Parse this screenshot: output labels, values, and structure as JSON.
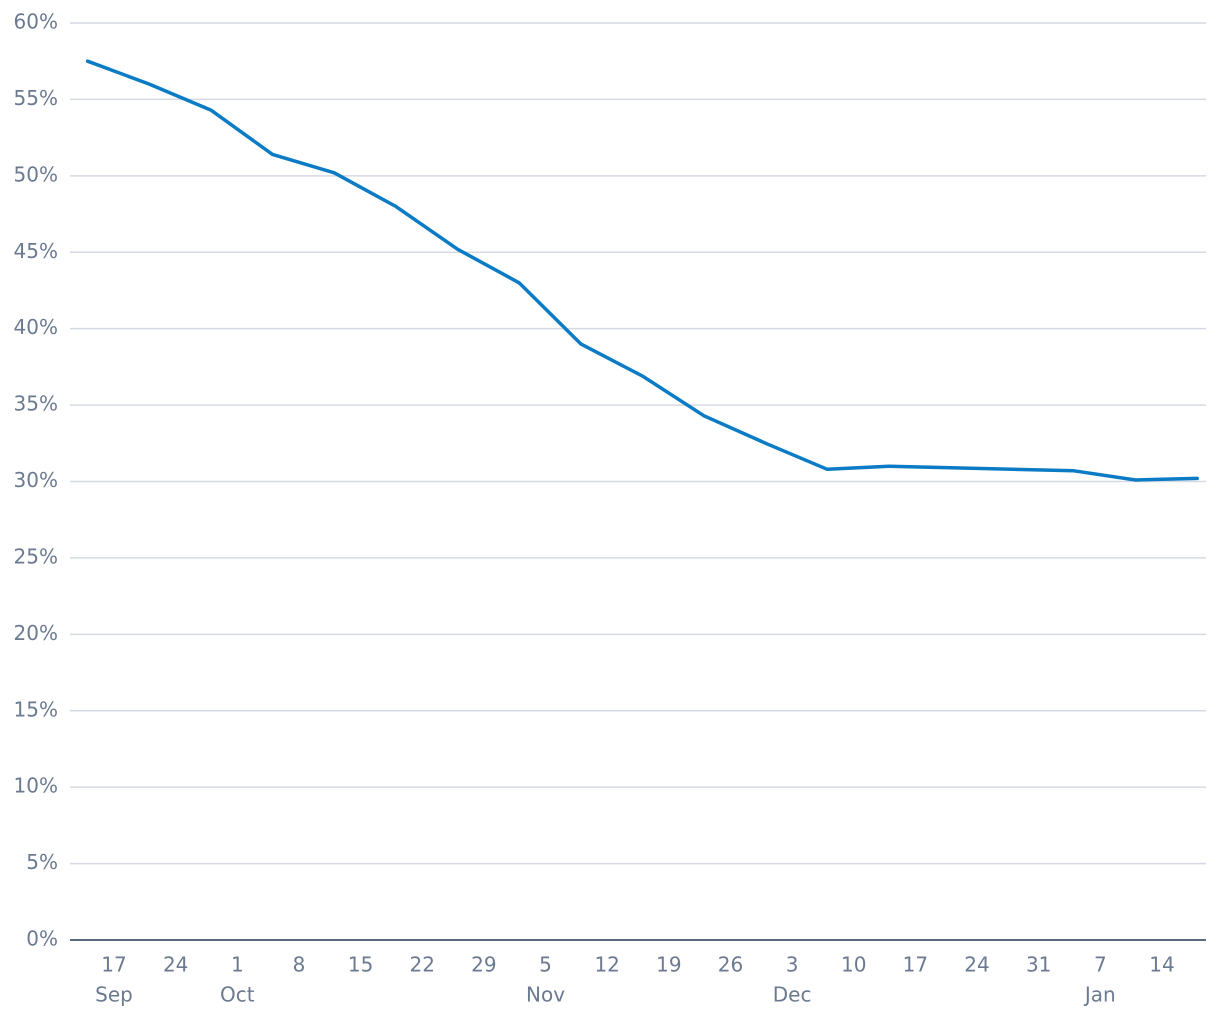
{
  "chart_data": {
    "type": "line",
    "x": [
      "Sep 14",
      "Sep 21",
      "Sep 28",
      "Oct 5",
      "Oct 12",
      "Oct 19",
      "Oct 26",
      "Nov 2",
      "Nov 9",
      "Nov 16",
      "Nov 23",
      "Nov 30",
      "Dec 7",
      "Dec 14",
      "Dec 21",
      "Dec 28",
      "Jan 4",
      "Jan 11",
      "Jan 18"
    ],
    "series": [
      {
        "color": "#0a7bc4",
        "values": [
          57.5,
          56.0,
          54.3,
          51.4,
          50.2,
          48.0,
          45.2,
          43.0,
          39.0,
          36.9,
          34.3,
          32.5,
          30.8,
          31.0,
          30.9,
          30.8,
          30.7,
          30.1,
          30.2
        ]
      }
    ],
    "xlim": [
      "Sep 12",
      "Jan 19"
    ],
    "xticks": [
      {
        "value": "Sep 17",
        "label": "17"
      },
      {
        "value": "Sep 24",
        "label": "24"
      },
      {
        "value": "Oct 1",
        "label": "1"
      },
      {
        "value": "Oct 8",
        "label": "8"
      },
      {
        "value": "Oct 15",
        "label": "15"
      },
      {
        "value": "Oct 22",
        "label": "22"
      },
      {
        "value": "Oct 29",
        "label": "29"
      },
      {
        "value": "Nov 5",
        "label": "5"
      },
      {
        "value": "Nov 12",
        "label": "12"
      },
      {
        "value": "Nov 19",
        "label": "19"
      },
      {
        "value": "Nov 26",
        "label": "26"
      },
      {
        "value": "Dec 3",
        "label": "3"
      },
      {
        "value": "Dec 10",
        "label": "10"
      },
      {
        "value": "Dec 17",
        "label": "17"
      },
      {
        "value": "Dec 24",
        "label": "24"
      },
      {
        "value": "Dec 31",
        "label": "31"
      },
      {
        "value": "Jan 7",
        "label": "7"
      },
      {
        "value": "Jan 14",
        "label": "14"
      }
    ],
    "x_month_labels": [
      {
        "value": "Sep 17",
        "label": "Sep"
      },
      {
        "value": "Oct 1",
        "label": "Oct"
      },
      {
        "value": "Nov 5",
        "label": "Nov"
      },
      {
        "value": "Dec 3",
        "label": "Dec"
      },
      {
        "value": "Jan 7",
        "label": "Jan"
      }
    ],
    "ylim": [
      0,
      60
    ],
    "yticks": [
      {
        "value": 0,
        "label": "0%"
      },
      {
        "value": 5,
        "label": "5%"
      },
      {
        "value": 10,
        "label": "10%"
      },
      {
        "value": 15,
        "label": "15%"
      },
      {
        "value": 20,
        "label": "20%"
      },
      {
        "value": 25,
        "label": "25%"
      },
      {
        "value": 30,
        "label": "30%"
      },
      {
        "value": 35,
        "label": "35%"
      },
      {
        "value": 40,
        "label": "40%"
      },
      {
        "value": 45,
        "label": "45%"
      },
      {
        "value": 50,
        "label": "50%"
      },
      {
        "value": 55,
        "label": "55%"
      },
      {
        "value": 60,
        "label": "60%"
      }
    ],
    "grid": true
  }
}
